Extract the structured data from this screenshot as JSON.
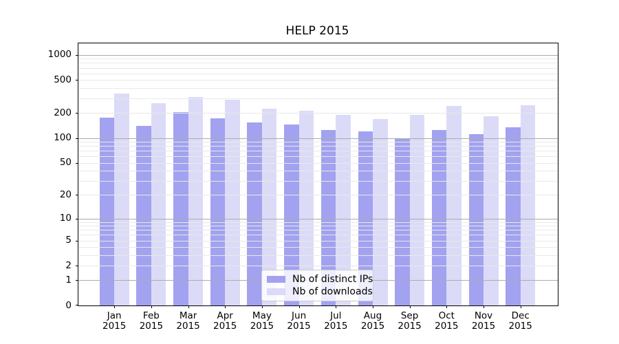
{
  "chart_data": {
    "type": "bar",
    "title": "HELP 2015",
    "categories": [
      "Jan 2015",
      "Feb 2015",
      "Mar 2015",
      "Apr 2015",
      "May 2015",
      "Jun 2015",
      "Jul 2015",
      "Aug 2015",
      "Sep 2015",
      "Oct 2015",
      "Nov 2015",
      "Dec 2015"
    ],
    "series": [
      {
        "name": "Nb of distinct IPs",
        "color": "#a2a2f0",
        "values": [
          176,
          140,
          207,
          172,
          155,
          146,
          125,
          120,
          100,
          126,
          112,
          134
        ]
      },
      {
        "name": "Nb of downloads",
        "color": "#dbdbf8",
        "values": [
          343,
          264,
          315,
          290,
          224,
          212,
          192,
          169,
          190,
          246,
          184,
          247
        ]
      }
    ],
    "yscale": "log1p",
    "yticks": [
      0,
      1,
      2,
      5,
      10,
      20,
      50,
      100,
      200,
      500,
      1000
    ],
    "ylim": [
      0,
      1372
    ],
    "grid": {
      "major_lines": [
        1,
        10,
        100,
        1000
      ],
      "minor_lines": [
        2,
        3,
        4,
        5,
        6,
        7,
        8,
        9,
        20,
        30,
        40,
        50,
        60,
        70,
        80,
        90,
        200,
        300,
        400,
        500,
        600,
        700,
        800,
        900
      ]
    },
    "legend_position": "lower center",
    "colors": {
      "axis": "#000000",
      "text": "#000000",
      "grid_major": "#ababab",
      "grid_minor": "#e8e8e8",
      "legend_border": "#cccccc"
    }
  }
}
